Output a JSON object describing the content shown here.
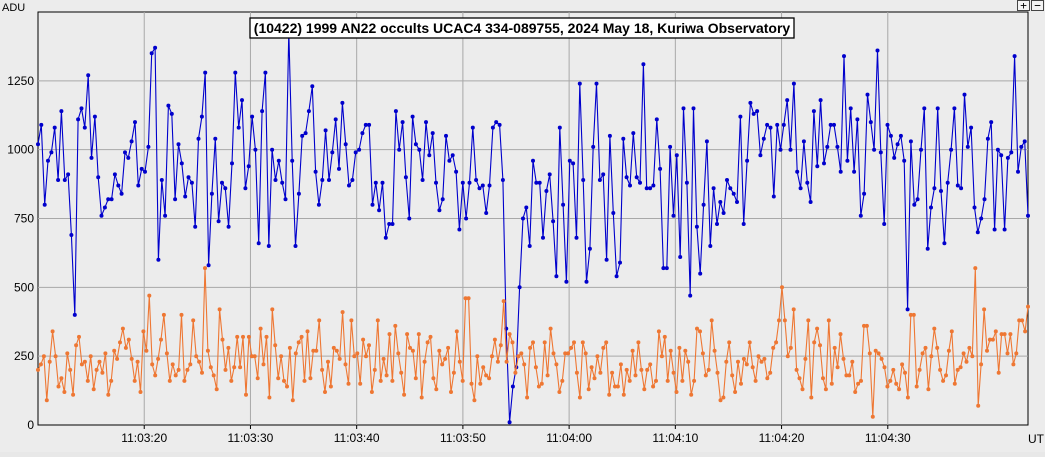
{
  "chart_data": {
    "type": "line",
    "title": "(10422) 1999 AN22 occults UCAC4 334-089755, 2024 May 18, Kuriwa Observatory",
    "ylabel": "ADU",
    "xlabel": "UT",
    "ylim": [
      0,
      1500
    ],
    "yticks": [
      0,
      250,
      500,
      750,
      1000,
      1250
    ],
    "xlim": [
      0,
      93.2
    ],
    "xtick_positions": [
      10,
      20,
      30,
      40,
      50,
      60,
      70,
      80
    ],
    "xtick_labels": [
      "11:03:20",
      "11:03:30",
      "11:03:40",
      "11:03:50",
      "11:04:00",
      "11:04:10",
      "11:04:20",
      "11:04:30"
    ],
    "grid": true,
    "series": [
      {
        "color": "#0000cc",
        "values": [
          1020,
          1090,
          800,
          960,
          990,
          1080,
          890,
          1140,
          890,
          910,
          690,
          400,
          1110,
          1150,
          1080,
          1270,
          970,
          1120,
          900,
          760,
          790,
          820,
          820,
          910,
          870,
          840,
          990,
          970,
          1030,
          1100,
          870,
          930,
          920,
          1010,
          1350,
          1370,
          600,
          890,
          760,
          1160,
          1130,
          820,
          1020,
          950,
          830,
          900,
          880,
          720,
          1040,
          1120,
          1280,
          580,
          840,
          1040,
          740,
          880,
          860,
          720,
          950,
          1280,
          1080,
          1180,
          860,
          940,
          1120,
          1000,
          660,
          1140,
          1280,
          650,
          1000,
          890,
          960,
          880,
          820,
          1430,
          960,
          650,
          840,
          1050,
          1060,
          1140,
          1230,
          920,
          800,
          890,
          1070,
          890,
          990,
          1110,
          930,
          1170,
          1020,
          870,
          890,
          990,
          1000,
          1060,
          1090,
          1090,
          800,
          880,
          780,
          880,
          680,
          730,
          730,
          1140,
          1000,
          1100,
          900,
          750,
          1120,
          1020,
          1000,
          890,
          1100,
          980,
          1060,
          880,
          780,
          820,
          1050,
          960,
          980,
          920,
          710,
          880,
          750,
          880,
          1080,
          890,
          860,
          870,
          770,
          870,
          1080,
          1100,
          1090,
          890,
          350,
          10,
          140,
          210,
          500,
          750,
          790,
          650,
          960,
          880,
          880,
          680,
          850,
          910,
          740,
          540,
          1080,
          800,
          520,
          960,
          950,
          680,
          1240,
          890,
          520,
          640,
          1010,
          1240,
          890,
          910,
          600,
          1050,
          770,
          540,
          590,
          1040,
          900,
          870,
          1060,
          900,
          880,
          1310,
          860,
          860,
          870,
          1110,
          930,
          570,
          570,
          1010,
          760,
          980,
          610,
          1150,
          880,
          470,
          1150,
          720,
          550,
          800,
          1030,
          650,
          860,
          730,
          810,
          770,
          890,
          860,
          840,
          810,
          1120,
          730,
          960,
          1170,
          1130,
          1140,
          980,
          1040,
          1090,
          1080,
          830,
          1090,
          1000,
          1090,
          1180,
          1000,
          1240,
          920,
          860,
          1030,
          880,
          810,
          1140,
          940,
          1180,
          950,
          1010,
          1090,
          1090,
          1010,
          920,
          1340,
          960,
          1150,
          920,
          1110,
          760,
          840,
          1200,
          1100,
          1000,
          1360,
          990,
          730,
          1090,
          1050,
          970,
          1020,
          1050,
          960,
          420,
          1030,
          800,
          820,
          1000,
          1150,
          640,
          790,
          860,
          1150,
          850,
          660,
          880,
          1000,
          1150,
          870,
          860,
          1200,
          1010,
          1080,
          790,
          700,
          750,
          820,
          1040,
          1100,
          710,
          1000,
          980,
          710,
          970,
          990,
          1340,
          920,
          1010,
          1030,
          760
        ]
      },
      {
        "color": "#ee7733",
        "values": [
          200,
          220,
          250,
          90,
          230,
          340,
          250,
          140,
          170,
          120,
          260,
          200,
          110,
          290,
          320,
          220,
          230,
          160,
          250,
          130,
          200,
          230,
          190,
          260,
          110,
          160,
          270,
          240,
          300,
          350,
          280,
          310,
          240,
          160,
          230,
          120,
          340,
          270,
          470,
          220,
          180,
          240,
          310,
          400,
          260,
          160,
          220,
          180,
          200,
          400,
          160,
          200,
          220,
          380,
          250,
          230,
          190,
          570,
          270,
          210,
          180,
          130,
          420,
          310,
          200,
          280,
          160,
          210,
          320,
          210,
          320,
          110,
          320,
          250,
          250,
          170,
          350,
          220,
          320,
          100,
          420,
          290,
          170,
          250,
          160,
          140,
          280,
          90,
          260,
          300,
          320,
          160,
          340,
          170,
          270,
          270,
          380,
          200,
          120,
          230,
          140,
          280,
          270,
          240,
          410,
          220,
          150,
          380,
          250,
          260,
          150,
          310,
          250,
          290,
          120,
          200,
          380,
          160,
          240,
          180,
          330,
          160,
          360,
          260,
          190,
          110,
          330,
          280,
          270,
          170,
          330,
          100,
          230,
          300,
          320,
          170,
          130,
          270,
          220,
          240,
          280,
          120,
          190,
          340,
          230,
          160,
          460,
          460,
          150,
          90,
          250,
          150,
          210,
          180,
          170,
          250,
          310,
          230,
          290,
          450,
          230,
          330,
          300,
          190,
          250,
          260,
          220,
          100,
          280,
          300,
          210,
          140,
          150,
          300,
          180,
          350,
          260,
          220,
          120,
          160,
          260,
          260,
          280,
          300,
          190,
          100,
          300,
          260,
          130,
          210,
          170,
          250,
          190,
          280,
          300,
          110,
          190,
          140,
          140,
          220,
          110,
          200,
          160,
          270,
          180,
          300,
          200,
          130,
          200,
          220,
          140,
          160,
          340,
          250,
          320,
          160,
          270,
          190,
          120,
          280,
          160,
          270,
          230,
          110,
          160,
          350,
          340,
          260,
          180,
          200,
          380,
          270,
          190,
          90,
          100,
          230,
          300,
          180,
          120,
          230,
          150,
          240,
          220,
          300,
          210,
          160,
          250,
          230,
          240,
          170,
          190,
          280,
          300,
          380,
          500,
          380,
          250,
          280,
          420,
          200,
          170,
          130,
          240,
          380,
          100,
          300,
          350,
          290,
          170,
          130,
          380,
          150,
          280,
          210,
          330,
          240,
          180,
          180,
          230,
          120,
          150,
          160,
          360,
          360,
          260,
          30,
          270,
          260,
          240,
          210,
          140,
          160,
          200,
          150,
          130,
          220,
          190,
          100,
          400,
          400,
          140,
          200,
          260,
          280,
          130,
          250,
          350,
          280,
          200,
          160,
          180,
          270,
          340,
          150,
          200,
          210,
          260,
          230,
          280,
          250,
          570,
          70,
          220,
          420,
          270,
          310,
          310,
          340,
          190,
          330,
          330,
          260,
          330,
          220,
          260,
          380,
          380,
          340,
          430
        ]
      }
    ]
  },
  "ui": {
    "zoom_in_label": "+",
    "zoom_out_label": "−"
  }
}
